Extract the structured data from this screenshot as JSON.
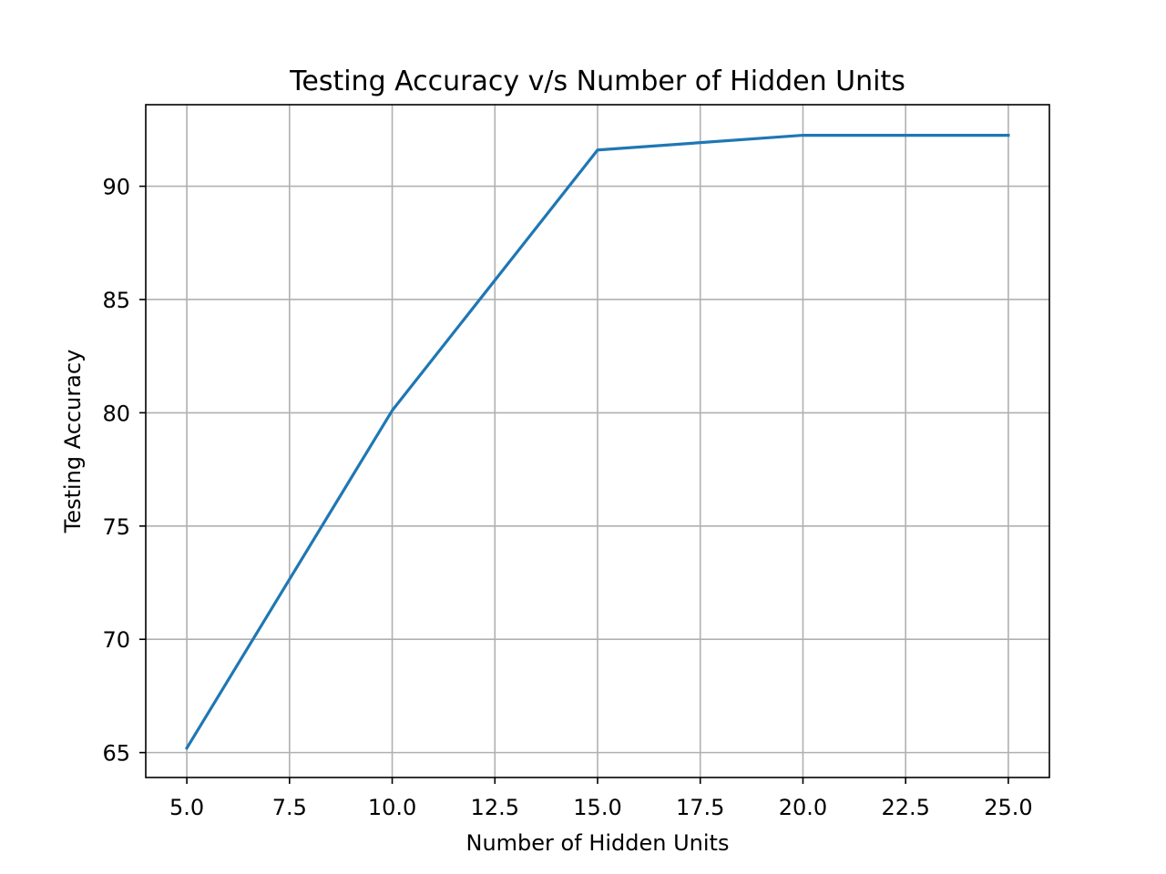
{
  "chart_data": {
    "type": "line",
    "title": "Testing Accuracy v/s Number of Hidden Units",
    "xlabel": "Number of Hidden Units",
    "ylabel": "Testing Accuracy",
    "x": [
      5,
      10,
      15,
      20,
      25
    ],
    "series": [
      {
        "values": [
          65.2,
          80.1,
          91.6,
          92.25,
          92.25
        ],
        "color": "#1f77b4"
      }
    ],
    "xlim": [
      4,
      26
    ],
    "ylim": [
      63.9,
      93.6
    ],
    "xticks": [
      "5.0",
      "7.5",
      "10.0",
      "12.5",
      "15.0",
      "17.5",
      "20.0",
      "22.5",
      "25.0"
    ],
    "yticks": [
      "65",
      "70",
      "75",
      "80",
      "85",
      "90"
    ],
    "grid": true,
    "legend": "none"
  }
}
